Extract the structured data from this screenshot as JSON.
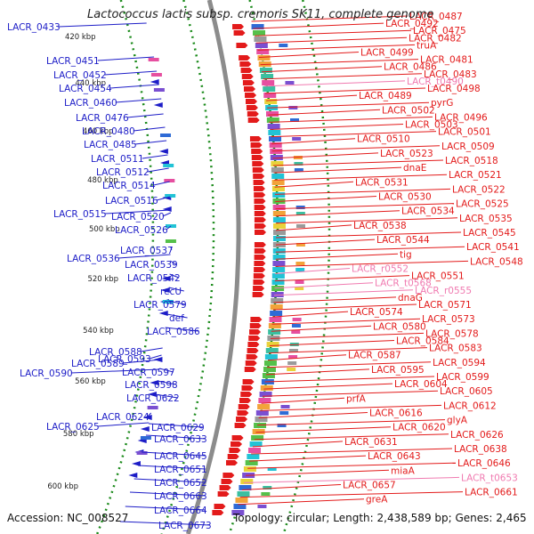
{
  "title": "Lactococcus lactis subsp. cremoris SK11, complete genome",
  "accession": "Accession: NC_008527",
  "topology": "Topology: circular; Length: 2,438,589 bp; Genes: 2,465",
  "colors": {
    "forward": "#e31b1b",
    "reverse": "#1d1dc7",
    "rna": "#f07ab0",
    "backbone": "#8c8c8c",
    "gc_track": "#1a8a1a"
  },
  "ticks": [
    "420 kbp",
    "440 kbp",
    "460 kbp",
    "480 kbp",
    "500 kbp",
    "520 kbp",
    "540 kbp",
    "560 kbp",
    "580 kbp",
    "600 kbp"
  ],
  "left_labels": [
    "LACR_0433",
    "LACR_0451",
    "LACR_0452",
    "LACR_0454",
    "LACR_0460",
    "LACR_0476",
    "LACR_0480",
    "LACR_0485",
    "LACR_0511",
    "LACR_0512",
    "LACR_0514",
    "LACR_0516",
    "LACR_0515",
    "LACR_0520",
    "LACR_0526",
    "LACR_0537",
    "LACR_0536",
    "LACR_0539",
    "LACR_0542",
    "recU",
    "LACR_0579",
    "def",
    "LACR_0586",
    "LACR_0588",
    "LACR_0593",
    "LACR_0589",
    "LACR_0597",
    "LACR_0590",
    "LACR_0598",
    "LACR_0622",
    "LACR_0624",
    "LACR_0625",
    "LACR_0629",
    "LACR_0633",
    "LACR_0645",
    "LACR_0651",
    "LACR_0652",
    "LACR_0663",
    "LACR_0664",
    "LACR_0673"
  ],
  "right_labels": [
    {
      "text": "LACR_0487",
      "type": "cds"
    },
    {
      "text": "LACR_0492",
      "type": "cds"
    },
    {
      "text": "LACR_0475",
      "type": "cds"
    },
    {
      "text": "LACR_0482",
      "type": "cds"
    },
    {
      "text": "truA",
      "type": "cds"
    },
    {
      "text": "LACR_0499",
      "type": "cds"
    },
    {
      "text": "LACR_0481",
      "type": "cds"
    },
    {
      "text": "LACR_0486",
      "type": "cds"
    },
    {
      "text": "LACR_0483",
      "type": "cds"
    },
    {
      "text": "LACR_t0490",
      "type": "rna"
    },
    {
      "text": "LACR_0498",
      "type": "cds"
    },
    {
      "text": "LACR_0489",
      "type": "cds"
    },
    {
      "text": "pyrG",
      "type": "cds"
    },
    {
      "text": "LACR_0502",
      "type": "cds"
    },
    {
      "text": "LACR_0496",
      "type": "cds"
    },
    {
      "text": "LACR_0503",
      "type": "cds"
    },
    {
      "text": "LACR_0501",
      "type": "cds"
    },
    {
      "text": "LACR_0510",
      "type": "cds"
    },
    {
      "text": "LACR_0509",
      "type": "cds"
    },
    {
      "text": "LACR_0523",
      "type": "cds"
    },
    {
      "text": "LACR_0518",
      "type": "cds"
    },
    {
      "text": "dnaE",
      "type": "cds"
    },
    {
      "text": "LACR_0521",
      "type": "cds"
    },
    {
      "text": "LACR_0531",
      "type": "cds"
    },
    {
      "text": "LACR_0522",
      "type": "cds"
    },
    {
      "text": "LACR_0530",
      "type": "cds"
    },
    {
      "text": "LACR_0525",
      "type": "cds"
    },
    {
      "text": "LACR_0534",
      "type": "cds"
    },
    {
      "text": "LACR_0535",
      "type": "cds"
    },
    {
      "text": "LACR_0538",
      "type": "cds"
    },
    {
      "text": "LACR_0545",
      "type": "cds"
    },
    {
      "text": "LACR_0544",
      "type": "cds"
    },
    {
      "text": "LACR_0541",
      "type": "cds"
    },
    {
      "text": "tig",
      "type": "cds"
    },
    {
      "text": "LACR_0548",
      "type": "cds"
    },
    {
      "text": "LACR_r0552",
      "type": "rna"
    },
    {
      "text": "LACR_0551",
      "type": "cds"
    },
    {
      "text": "LACR_t0568",
      "type": "rna"
    },
    {
      "text": "LACR_r0555",
      "type": "rna"
    },
    {
      "text": "dnaG",
      "type": "cds"
    },
    {
      "text": "LACR_0571",
      "type": "cds"
    },
    {
      "text": "LACR_0574",
      "type": "cds"
    },
    {
      "text": "LACR_0573",
      "type": "cds"
    },
    {
      "text": "LACR_0580",
      "type": "cds"
    },
    {
      "text": "LACR_0578",
      "type": "cds"
    },
    {
      "text": "LACR_0584",
      "type": "cds"
    },
    {
      "text": "LACR_0583",
      "type": "cds"
    },
    {
      "text": "LACR_0587",
      "type": "cds"
    },
    {
      "text": "LACR_0594",
      "type": "cds"
    },
    {
      "text": "LACR_0595",
      "type": "cds"
    },
    {
      "text": "LACR_0599",
      "type": "cds"
    },
    {
      "text": "LACR_0604",
      "type": "cds"
    },
    {
      "text": "LACR_0605",
      "type": "cds"
    },
    {
      "text": "prfA",
      "type": "cds"
    },
    {
      "text": "LACR_0612",
      "type": "cds"
    },
    {
      "text": "LACR_0616",
      "type": "cds"
    },
    {
      "text": "glyA",
      "type": "cds"
    },
    {
      "text": "LACR_0620",
      "type": "cds"
    },
    {
      "text": "LACR_0626",
      "type": "cds"
    },
    {
      "text": "LACR_0631",
      "type": "cds"
    },
    {
      "text": "LACR_0638",
      "type": "cds"
    },
    {
      "text": "LACR_0643",
      "type": "cds"
    },
    {
      "text": "LACR_0646",
      "type": "cds"
    },
    {
      "text": "miaA",
      "type": "cds"
    },
    {
      "text": "LACR_t0653",
      "type": "rna"
    },
    {
      "text": "LACR_0657",
      "type": "cds"
    },
    {
      "text": "LACR_0661",
      "type": "cds"
    },
    {
      "text": "greA",
      "type": "cds"
    }
  ]
}
